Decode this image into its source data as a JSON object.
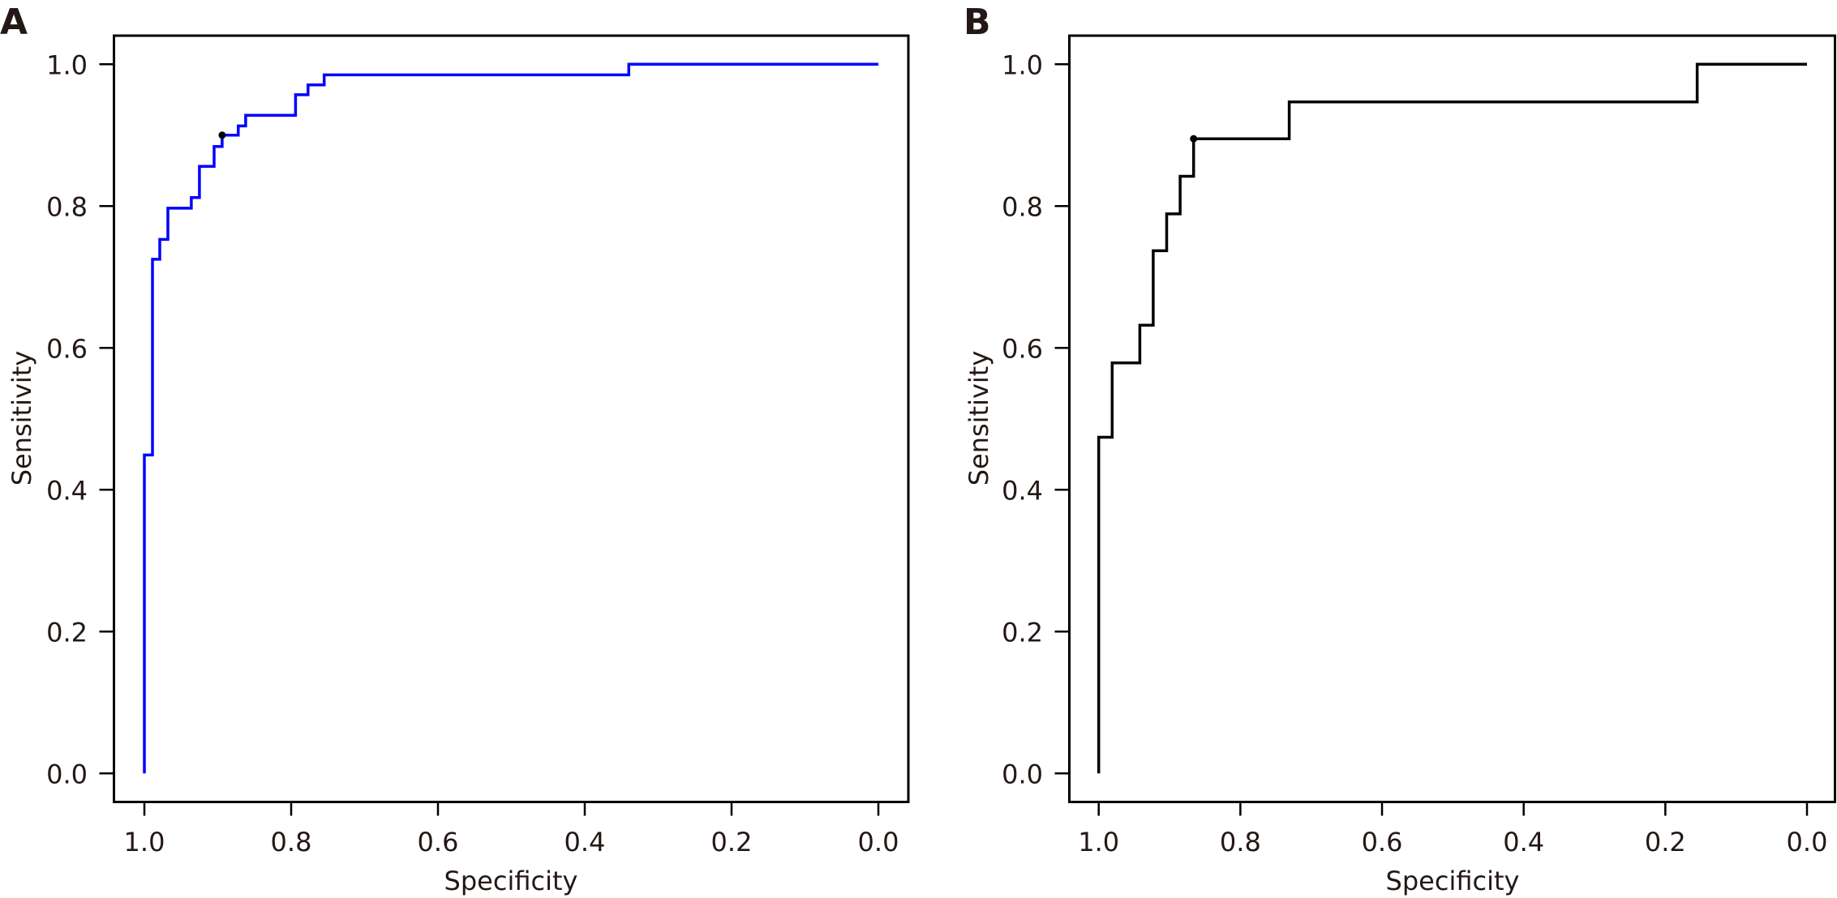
{
  "chart_data": [
    {
      "type": "line",
      "panel_label": "A",
      "title": "",
      "xlabel": "Specificity",
      "ylabel": "Sensitivity",
      "xlim": [
        1.0,
        0.0
      ],
      "ylim": [
        0.0,
        1.0
      ],
      "x_reversed": true,
      "xticks": [
        "1.0",
        "0.8",
        "0.6",
        "0.4",
        "0.2",
        "0.0"
      ],
      "yticks": [
        "0.0",
        "0.2",
        "0.4",
        "0.6",
        "0.8",
        "1.0"
      ],
      "grid": false,
      "legend": "none",
      "series": [
        {
          "name": "ROC curve A",
          "color": "#0000ff",
          "step": true,
          "points": [
            [
              1.0,
              0.0
            ],
            [
              1.0,
              0.449
            ],
            [
              0.989,
              0.449
            ],
            [
              0.989,
              0.725
            ],
            [
              0.979,
              0.725
            ],
            [
              0.979,
              0.753
            ],
            [
              0.968,
              0.753
            ],
            [
              0.968,
              0.797
            ],
            [
              0.936,
              0.797
            ],
            [
              0.936,
              0.812
            ],
            [
              0.925,
              0.812
            ],
            [
              0.925,
              0.856
            ],
            [
              0.905,
              0.856
            ],
            [
              0.905,
              0.884
            ],
            [
              0.894,
              0.884
            ],
            [
              0.894,
              0.9
            ],
            [
              0.872,
              0.9
            ],
            [
              0.872,
              0.913
            ],
            [
              0.862,
              0.913
            ],
            [
              0.862,
              0.928
            ],
            [
              0.794,
              0.928
            ],
            [
              0.794,
              0.957
            ],
            [
              0.777,
              0.957
            ],
            [
              0.777,
              0.971
            ],
            [
              0.755,
              0.971
            ],
            [
              0.755,
              0.985
            ],
            [
              0.34,
              0.985
            ],
            [
              0.34,
              1.0
            ],
            [
              0.0,
              1.0
            ]
          ]
        }
      ],
      "cutoff_point": {
        "specificity": 0.894,
        "sensitivity": 0.9,
        "color": "#000000"
      }
    },
    {
      "type": "line",
      "panel_label": "B",
      "title": "",
      "xlabel": "Specificity",
      "ylabel": "Sensitivity",
      "xlim": [
        1.0,
        0.0
      ],
      "ylim": [
        0.0,
        1.0
      ],
      "x_reversed": true,
      "xticks": [
        "1.0",
        "0.8",
        "0.6",
        "0.4",
        "0.2",
        "0.0"
      ],
      "yticks": [
        "0.0",
        "0.2",
        "0.4",
        "0.6",
        "0.8",
        "1.0"
      ],
      "grid": false,
      "legend": "none",
      "series": [
        {
          "name": "ROC curve B",
          "color": "#000000",
          "step": true,
          "points": [
            [
              1.0,
              0.0
            ],
            [
              1.0,
              0.474
            ],
            [
              0.981,
              0.474
            ],
            [
              0.981,
              0.579
            ],
            [
              0.942,
              0.579
            ],
            [
              0.942,
              0.632
            ],
            [
              0.923,
              0.632
            ],
            [
              0.923,
              0.737
            ],
            [
              0.904,
              0.737
            ],
            [
              0.904,
              0.789
            ],
            [
              0.885,
              0.789
            ],
            [
              0.885,
              0.842
            ],
            [
              0.866,
              0.842
            ],
            [
              0.866,
              0.895
            ],
            [
              0.731,
              0.895
            ],
            [
              0.731,
              0.947
            ],
            [
              0.155,
              0.947
            ],
            [
              0.155,
              1.0
            ],
            [
              0.0,
              1.0
            ]
          ]
        }
      ],
      "cutoff_point": {
        "specificity": 0.866,
        "sensitivity": 0.895,
        "color": "#000000"
      }
    }
  ]
}
